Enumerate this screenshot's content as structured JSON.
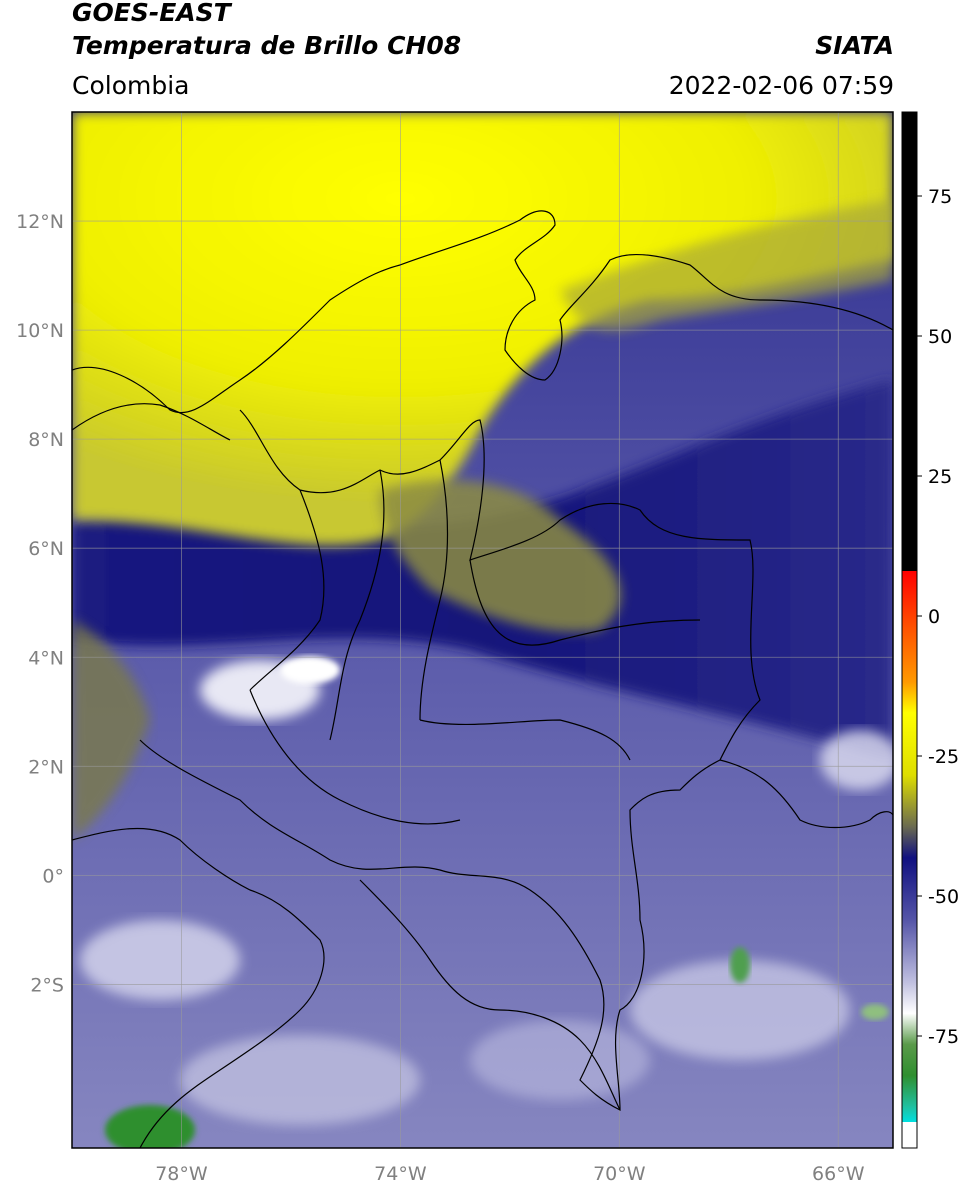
{
  "header": {
    "satellite": "GOES-EAST",
    "product": "Temperatura de Brillo CH08",
    "organization": "SIATA",
    "region": "Colombia",
    "timestamp": "2022-02-06 07:59"
  },
  "map": {
    "lon_range": [
      -80,
      -65
    ],
    "lat_range": [
      -5,
      14
    ],
    "lat_ticks": [
      {
        "value": 12,
        "label": "12°N"
      },
      {
        "value": 10,
        "label": "10°N"
      },
      {
        "value": 8,
        "label": "8°N"
      },
      {
        "value": 6,
        "label": "6°N"
      },
      {
        "value": 4,
        "label": "4°N"
      },
      {
        "value": 2,
        "label": "2°N"
      },
      {
        "value": 0,
        "label": "0°"
      },
      {
        "value": -2,
        "label": "2°S"
      }
    ],
    "lon_ticks": [
      {
        "value": -78,
        "label": "78°W"
      },
      {
        "value": -74,
        "label": "74°W"
      },
      {
        "value": -70,
        "label": "70°W"
      },
      {
        "value": -66,
        "label": "66°W"
      }
    ],
    "gridlines": true
  },
  "colorbar": {
    "range": [
      -95,
      90
    ],
    "ticks": [
      {
        "value": 75,
        "label": "75"
      },
      {
        "value": 50,
        "label": "50"
      },
      {
        "value": 25,
        "label": "25"
      },
      {
        "value": 0,
        "label": "0"
      },
      {
        "value": -25,
        "label": "-25"
      },
      {
        "value": -50,
        "label": "-50"
      },
      {
        "value": -75,
        "label": "-75"
      }
    ],
    "colors": {
      "black": "#000000",
      "red": "#ff0000",
      "orange": "#ff9900",
      "yellow": "#ffff00",
      "olive": "#8a8a33",
      "navy": "#101080",
      "lavender": "#b0b0d8",
      "green": "#2f8f2f",
      "cyan": "#00e0e0"
    }
  }
}
